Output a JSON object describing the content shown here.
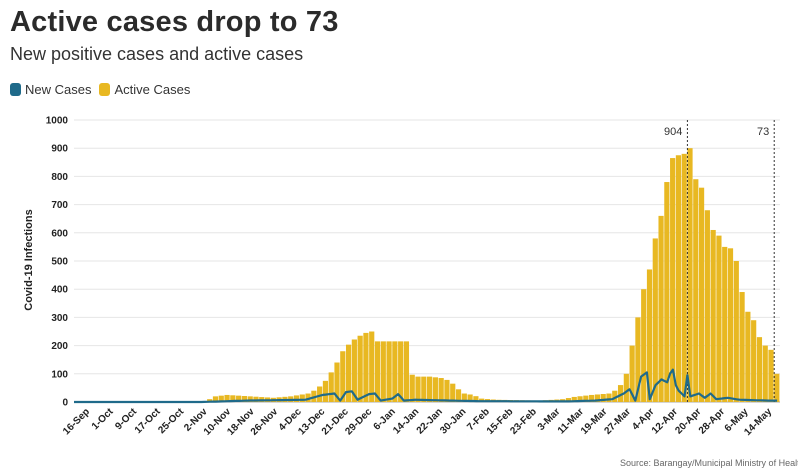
{
  "header": {
    "title": "Active cases drop to 73",
    "subtitle": "New positive cases and active cases"
  },
  "source": "Source: Barangay/Municipal Ministry of Health",
  "colors": {
    "new_cases": "#1f6a8a",
    "active_cases": "#e8b822",
    "grid": "#e6e6e6"
  },
  "chart_data": {
    "type": "bar",
    "ylabel": "Covid-19 Infections",
    "ylim": [
      0,
      1000
    ],
    "yticks": [
      0,
      100,
      200,
      300,
      400,
      500,
      600,
      700,
      800,
      900,
      1000
    ],
    "grid": true,
    "legend_position": "top-left",
    "x_tick_labels": [
      "16-Sep",
      "1-Oct",
      "9-Oct",
      "17-Oct",
      "25-Oct",
      "2-Nov",
      "10-Nov",
      "18-Nov",
      "26-Nov",
      "4-Dec",
      "13-Dec",
      "21-Dec",
      "29-Dec",
      "6-Jan",
      "14-Jan",
      "22-Jan",
      "30-Jan",
      "7-Feb",
      "15-Feb",
      "23-Feb",
      "3-Mar",
      "11-Mar",
      "19-Mar",
      "27-Mar",
      "4-Apr",
      "12-Apr",
      "20-Apr",
      "28-Apr",
      "6-May",
      "14-May"
    ],
    "annotations": [
      {
        "label": "904",
        "at_day": 212
      },
      {
        "label": "73",
        "at_day": 242
      }
    ],
    "series": [
      {
        "name": "Active Cases",
        "kind": "bar",
        "keypoints": [
          [
            0,
            0
          ],
          [
            28,
            0
          ],
          [
            44,
            0
          ],
          [
            48,
            20
          ],
          [
            52,
            25
          ],
          [
            60,
            20
          ],
          [
            68,
            15
          ],
          [
            74,
            20
          ],
          [
            80,
            30
          ],
          [
            83,
            45
          ],
          [
            86,
            75
          ],
          [
            89,
            120
          ],
          [
            92,
            180
          ],
          [
            95,
            215
          ],
          [
            98,
            235
          ],
          [
            100,
            245
          ],
          [
            102,
            250
          ],
          [
            104,
            215
          ],
          [
            108,
            215
          ],
          [
            112,
            215
          ],
          [
            114,
            215
          ],
          [
            115,
            100
          ],
          [
            118,
            90
          ],
          [
            122,
            90
          ],
          [
            126,
            85
          ],
          [
            129,
            75
          ],
          [
            132,
            45
          ],
          [
            134,
            30
          ],
          [
            137,
            25
          ],
          [
            140,
            12
          ],
          [
            145,
            8
          ],
          [
            160,
            5
          ],
          [
            168,
            10
          ],
          [
            172,
            18
          ],
          [
            178,
            25
          ],
          [
            184,
            30
          ],
          [
            186,
            40
          ],
          [
            188,
            60
          ],
          [
            190,
            100
          ],
          [
            192,
            200
          ],
          [
            194,
            300
          ],
          [
            196,
            400
          ],
          [
            198,
            470
          ],
          [
            200,
            580
          ],
          [
            202,
            660
          ],
          [
            204,
            780
          ],
          [
            205,
            850
          ],
          [
            207,
            880
          ],
          [
            209,
            870
          ],
          [
            210,
            880
          ],
          [
            211,
            890
          ],
          [
            212,
            900
          ],
          [
            213,
            870
          ],
          [
            214,
            790
          ],
          [
            216,
            760
          ],
          [
            218,
            680
          ],
          [
            220,
            610
          ],
          [
            222,
            590
          ],
          [
            224,
            550
          ],
          [
            226,
            545
          ],
          [
            228,
            500
          ],
          [
            230,
            390
          ],
          [
            232,
            320
          ],
          [
            234,
            290
          ],
          [
            236,
            230
          ],
          [
            238,
            200
          ],
          [
            240,
            185
          ],
          [
            241,
            140
          ],
          [
            242,
            100
          ],
          [
            243,
            73
          ]
        ]
      },
      {
        "name": "New Cases",
        "kind": "line",
        "keypoints": [
          [
            0,
            0
          ],
          [
            44,
            0
          ],
          [
            60,
            5
          ],
          [
            80,
            8
          ],
          [
            86,
            25
          ],
          [
            90,
            30
          ],
          [
            92,
            5
          ],
          [
            94,
            35
          ],
          [
            96,
            38
          ],
          [
            98,
            8
          ],
          [
            102,
            28
          ],
          [
            104,
            30
          ],
          [
            106,
            5
          ],
          [
            110,
            12
          ],
          [
            112,
            28
          ],
          [
            114,
            5
          ],
          [
            118,
            8
          ],
          [
            130,
            5
          ],
          [
            140,
            3
          ],
          [
            170,
            2
          ],
          [
            180,
            5
          ],
          [
            186,
            10
          ],
          [
            190,
            30
          ],
          [
            192,
            45
          ],
          [
            194,
            5
          ],
          [
            196,
            90
          ],
          [
            198,
            105
          ],
          [
            199,
            10
          ],
          [
            201,
            60
          ],
          [
            203,
            80
          ],
          [
            205,
            70
          ],
          [
            206,
            100
          ],
          [
            207,
            115
          ],
          [
            208,
            60
          ],
          [
            209,
            40
          ],
          [
            210,
            30
          ],
          [
            211,
            20
          ],
          [
            212,
            95
          ],
          [
            213,
            20
          ],
          [
            216,
            30
          ],
          [
            218,
            15
          ],
          [
            220,
            30
          ],
          [
            222,
            10
          ],
          [
            226,
            15
          ],
          [
            230,
            8
          ],
          [
            240,
            5
          ],
          [
            243,
            5
          ]
        ]
      }
    ]
  }
}
